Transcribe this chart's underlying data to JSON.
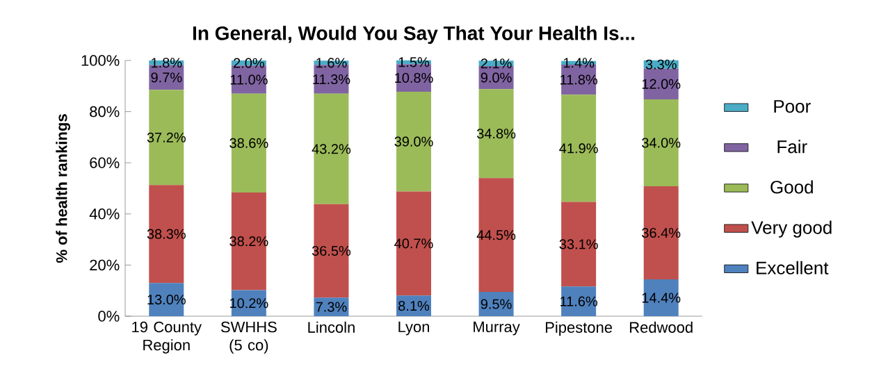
{
  "chart_data": {
    "type": "bar",
    "stacked": true,
    "title": "In General, Would You Say That Your Health Is...",
    "ylabel": "% of health rankings",
    "categories": [
      "19 County Region",
      "SWHHS (5 co)",
      "Lincoln",
      "Lyon",
      "Murray",
      "Pipestone",
      "Redwood"
    ],
    "ylim": [
      0,
      100
    ],
    "yticks": [
      {
        "value": 0,
        "label": "0%"
      },
      {
        "value": 20,
        "label": "20%"
      },
      {
        "value": 40,
        "label": "40%"
      },
      {
        "value": 60,
        "label": "60%"
      },
      {
        "value": 80,
        "label": "80%"
      },
      {
        "value": 100,
        "label": "100%"
      }
    ],
    "legend": "right",
    "grid": false,
    "series": [
      {
        "name": "Excellent",
        "color": "#4f81bd",
        "values": [
          13.0,
          10.2,
          7.3,
          8.1,
          9.5,
          11.6,
          14.4
        ],
        "value_labels": [
          "13.0%",
          "10.2%",
          "7.3%",
          "8.1%",
          "9.5%",
          "11.6%",
          "14.4%"
        ]
      },
      {
        "name": "Very good",
        "color": "#c0504d",
        "values": [
          38.3,
          38.2,
          36.5,
          40.7,
          44.5,
          33.1,
          36.4
        ],
        "value_labels": [
          "38.3%",
          "38.2%",
          "36.5%",
          "40.7%",
          "44.5%",
          "33.1%",
          "36.4%"
        ]
      },
      {
        "name": "Good",
        "color": "#9bbb59",
        "values": [
          37.2,
          38.6,
          43.2,
          39.0,
          34.8,
          41.9,
          34.0
        ],
        "value_labels": [
          "37.2%",
          "38.6%",
          "43.2%",
          "39.0%",
          "34.8%",
          "41.9%",
          "34.0%"
        ]
      },
      {
        "name": "Fair",
        "color": "#8064a2",
        "values": [
          9.7,
          11.0,
          11.3,
          10.8,
          9.0,
          11.8,
          12.0
        ],
        "value_labels": [
          "9.7%",
          "11.0%",
          "11.3%",
          "10.8%",
          "9.0%",
          "11.8%",
          "12.0%"
        ]
      },
      {
        "name": "Poor",
        "color": "#4bacc6",
        "values": [
          1.8,
          2.0,
          1.6,
          1.5,
          2.1,
          1.4,
          3.3
        ],
        "value_labels": [
          "1.8%",
          "2.0%",
          "1.6%",
          "1.5%",
          "2.1%",
          "1.4%",
          "3.3%"
        ]
      }
    ]
  }
}
